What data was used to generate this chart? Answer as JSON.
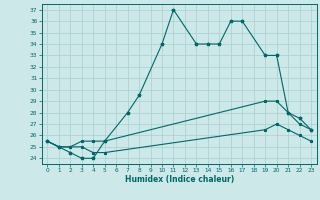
{
  "xlabel": "Humidex (Indice chaleur)",
  "bg_color": "#cce8e8",
  "grid_color": "#aacece",
  "line_color": "#006868",
  "text_color": "#006868",
  "xlim": [
    -0.5,
    23.5
  ],
  "ylim": [
    23.5,
    37.5
  ],
  "xticks": [
    0,
    1,
    2,
    3,
    4,
    5,
    6,
    7,
    8,
    9,
    10,
    11,
    12,
    13,
    14,
    15,
    16,
    17,
    18,
    19,
    20,
    21,
    22,
    23
  ],
  "yticks": [
    24,
    25,
    26,
    27,
    28,
    29,
    30,
    31,
    32,
    33,
    34,
    35,
    36,
    37
  ],
  "line1_x": [
    0,
    1,
    2,
    3,
    4,
    5,
    7,
    8,
    10,
    11,
    13,
    14,
    15,
    16,
    17,
    19,
    20,
    21,
    22,
    23
  ],
  "line1_y": [
    25.5,
    25.0,
    24.5,
    24.0,
    24.0,
    25.5,
    28.0,
    29.5,
    34.0,
    37.0,
    34.0,
    34.0,
    34.0,
    36.0,
    36.0,
    33.0,
    33.0,
    28.0,
    27.5,
    26.5
  ],
  "line2_x": [
    0,
    1,
    2,
    3,
    4,
    5,
    19,
    20,
    21,
    22,
    23
  ],
  "line2_y": [
    25.5,
    25.0,
    25.0,
    25.5,
    25.5,
    25.5,
    29.0,
    29.0,
    28.0,
    27.0,
    26.5
  ],
  "line3_x": [
    0,
    1,
    2,
    3,
    4,
    5,
    19,
    20,
    21,
    22,
    23
  ],
  "line3_y": [
    25.5,
    25.0,
    25.0,
    25.0,
    24.5,
    24.5,
    26.5,
    27.0,
    26.5,
    26.0,
    25.5
  ]
}
